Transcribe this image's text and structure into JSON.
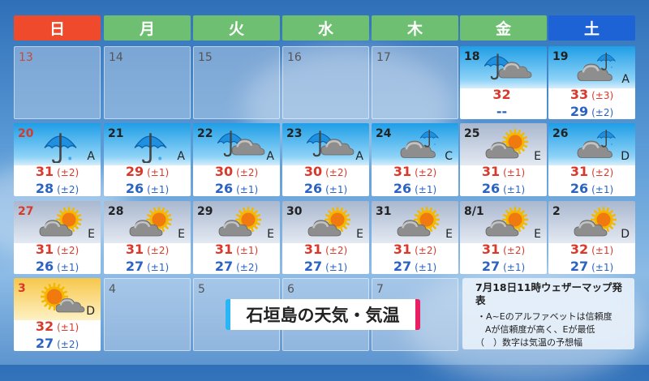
{
  "title": "石垣島の天気・気温",
  "note": {
    "issued": "7月18日11時ウェザーマップ発表",
    "line1": "・A~Eのアルファベットは信頼度",
    "line2": "Aが信頼度が高く、Eが最低",
    "line3": "（　）数字は気温の予想幅"
  },
  "colors": {
    "sunday": "#f04a2c",
    "weekday": "#6fbf73",
    "saturday": "#1e63d6",
    "high": "#d9392b",
    "low": "#2a63c2"
  },
  "weekdays": [
    "日",
    "月",
    "火",
    "水",
    "木",
    "金",
    "土"
  ],
  "weeks": [
    [
      {
        "date": "13",
        "empty": true
      },
      {
        "date": "14",
        "empty": true
      },
      {
        "date": "15",
        "empty": true
      },
      {
        "date": "16",
        "empty": true
      },
      {
        "date": "17",
        "empty": true
      },
      {
        "date": "18",
        "bg": "blue",
        "icon": "rain-cloud",
        "grade": "",
        "high": "32",
        "high_range": "",
        "low": "--",
        "low_range": ""
      },
      {
        "date": "19",
        "bg": "blue",
        "icon": "cloud-rain",
        "grade": "A",
        "high": "33",
        "high_range": "(±3)",
        "low": "29",
        "low_range": "(±2)"
      }
    ],
    [
      {
        "date": "20",
        "bg": "blue",
        "icon": "rain",
        "grade": "A",
        "high": "31",
        "high_range": "(±2)",
        "low": "28",
        "low_range": "(±2)"
      },
      {
        "date": "21",
        "bg": "blue",
        "icon": "rain",
        "grade": "A",
        "high": "29",
        "high_range": "(±1)",
        "low": "26",
        "low_range": "(±1)"
      },
      {
        "date": "22",
        "bg": "blue",
        "icon": "rain-cloud",
        "grade": "A",
        "high": "30",
        "high_range": "(±2)",
        "low": "26",
        "low_range": "(±1)"
      },
      {
        "date": "23",
        "bg": "blue",
        "icon": "rain-cloud",
        "grade": "A",
        "high": "30",
        "high_range": "(±2)",
        "low": "26",
        "low_range": "(±1)"
      },
      {
        "date": "24",
        "bg": "blue",
        "icon": "cloud-rain",
        "grade": "C",
        "high": "31",
        "high_range": "(±2)",
        "low": "26",
        "low_range": "(±1)"
      },
      {
        "date": "25",
        "bg": "gray",
        "icon": "cloud-sun",
        "grade": "E",
        "high": "31",
        "high_range": "(±1)",
        "low": "26",
        "low_range": "(±1)"
      },
      {
        "date": "26",
        "bg": "blue",
        "icon": "cloud-rain",
        "grade": "D",
        "high": "31",
        "high_range": "(±2)",
        "low": "26",
        "low_range": "(±1)"
      }
    ],
    [
      {
        "date": "27",
        "bg": "gray",
        "icon": "cloud-sun",
        "grade": "E",
        "high": "31",
        "high_range": "(±2)",
        "low": "26",
        "low_range": "(±1)"
      },
      {
        "date": "28",
        "bg": "gray",
        "icon": "cloud-sun",
        "grade": "E",
        "high": "31",
        "high_range": "(±2)",
        "low": "27",
        "low_range": "(±1)"
      },
      {
        "date": "29",
        "bg": "gray",
        "icon": "cloud-sun",
        "grade": "E",
        "high": "31",
        "high_range": "(±1)",
        "low": "27",
        "low_range": "(±2)"
      },
      {
        "date": "30",
        "bg": "gray",
        "icon": "cloud-sun",
        "grade": "E",
        "high": "31",
        "high_range": "(±2)",
        "low": "27",
        "low_range": "(±1)"
      },
      {
        "date": "31",
        "bg": "gray",
        "icon": "cloud-sun",
        "grade": "E",
        "high": "31",
        "high_range": "(±2)",
        "low": "27",
        "low_range": "(±1)"
      },
      {
        "date": "8/1",
        "bg": "gray",
        "icon": "cloud-sun",
        "grade": "E",
        "high": "31",
        "high_range": "(±2)",
        "low": "27",
        "low_range": "(±1)"
      },
      {
        "date": "2",
        "bg": "gray",
        "icon": "cloud-sun",
        "grade": "D",
        "high": "32",
        "high_range": "(±1)",
        "low": "27",
        "low_range": "(±1)"
      }
    ],
    [
      {
        "date": "3",
        "bg": "yellow",
        "icon": "sun-cloud",
        "grade": "D",
        "high": "32",
        "high_range": "(±1)",
        "low": "27",
        "low_range": "(±2)"
      },
      {
        "date": "4",
        "empty": true
      },
      {
        "date": "5",
        "empty": true
      },
      {
        "date": "6",
        "empty": true
      },
      {
        "date": "7",
        "empty": true
      }
    ]
  ]
}
